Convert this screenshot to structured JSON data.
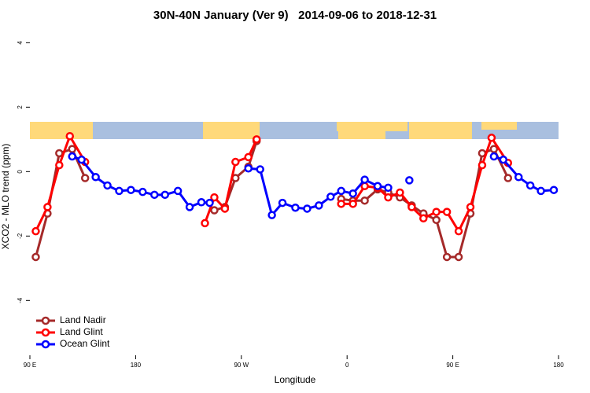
{
  "chart_data": {
    "type": "line",
    "title": "30N-40N January (Ver 9)   2014-09-06 to 2018-12-31",
    "x_label": "Longitude",
    "y_label": "XCO2 - MLO trend (ppm)",
    "xlim": [
      90,
      540
    ],
    "ylim": [
      -5.7,
      4.35
    ],
    "xticks": [
      {
        "value": 90,
        "label": "90 E"
      },
      180,
      {
        "value": 270,
        "label": "90 W"
      },
      {
        "value": 360,
        "label": "0"
      },
      {
        "value": 450,
        "label": "90 E"
      },
      180
    ],
    "yticks": [
      4,
      2,
      0,
      -2,
      -4
    ],
    "legend": "bottom-left",
    "series": [
      {
        "name": "Land Nadir",
        "color": "#a52a2a",
        "x": [
          95,
          105,
          115,
          126,
          137,
          null,
          247,
          256,
          265,
          276,
          283,
          null,
          355,
          365,
          375,
          386,
          395,
          405,
          415,
          425,
          436,
          445,
          455,
          465,
          475,
          485,
          497
        ],
        "values": [
          -2.65,
          -1.3,
          0.57,
          0.7,
          -0.2,
          null,
          -1.2,
          -1.1,
          -0.2,
          0.15,
          0.95,
          null,
          -0.85,
          -0.9,
          -0.9,
          -0.55,
          -0.65,
          -0.8,
          -1.05,
          -1.3,
          -1.5,
          -2.65,
          -2.65,
          -1.3,
          0.57,
          0.7,
          -0.2
        ]
      },
      {
        "name": "Land Glint",
        "color": "#ff0000",
        "x": [
          95,
          105,
          115,
          124,
          137,
          null,
          239,
          247,
          256,
          265,
          276,
          283,
          null,
          355,
          365,
          375,
          386,
          395,
          405,
          415,
          425,
          436,
          445,
          455,
          465,
          475,
          483,
          497
        ],
        "values": [
          -1.85,
          -1.1,
          0.2,
          1.1,
          0.3,
          null,
          -1.6,
          -0.8,
          -1.15,
          0.3,
          0.45,
          1.0,
          null,
          -1.0,
          -1.0,
          -0.45,
          -0.5,
          -0.8,
          -0.65,
          -1.1,
          -1.45,
          -1.25,
          -1.25,
          -1.85,
          -1.1,
          0.2,
          1.05,
          0.27
        ]
      },
      {
        "name": "Ocean Glint",
        "color": "#0000ff",
        "x": [
          126,
          134,
          146,
          156,
          166,
          176,
          186,
          196,
          205,
          216,
          226,
          236,
          243,
          null,
          276,
          286,
          296,
          305,
          316,
          326,
          336,
          346,
          355,
          365,
          375,
          386,
          395,
          null,
          413,
          null,
          485,
          493,
          506,
          516,
          525,
          536
        ],
        "values": [
          0.47,
          0.37,
          -0.17,
          -0.43,
          -0.6,
          -0.57,
          -0.63,
          -0.72,
          -0.72,
          -0.6,
          -1.1,
          -0.95,
          -0.97,
          null,
          0.1,
          0.07,
          -1.35,
          -0.97,
          -1.12,
          -1.15,
          -1.05,
          -0.78,
          -0.6,
          -0.68,
          -0.25,
          -0.45,
          -0.5,
          null,
          -0.27,
          null,
          0.47,
          0.37,
          -0.17,
          -0.43,
          -0.6,
          -0.57
        ]
      }
    ]
  }
}
